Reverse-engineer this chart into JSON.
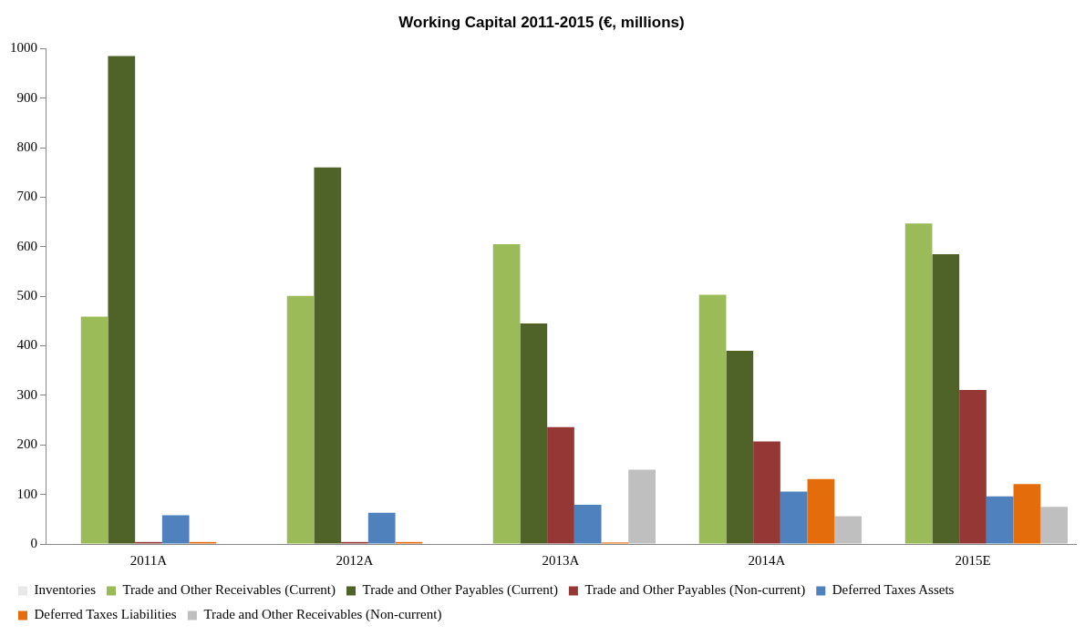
{
  "chart_data": {
    "type": "bar",
    "title": "Working Capital 2011-2015 (€, millions)",
    "categories": [
      "2011A",
      "2012A",
      "2013A",
      "2014A",
      "2015E"
    ],
    "series": [
      {
        "name": "Inventories",
        "color": "#e8e8e8",
        "values": [
          null,
          null,
          null,
          null,
          null
        ]
      },
      {
        "name": "Trade and Other Receivables (Current)",
        "color": "#9bbb59",
        "values": [
          459,
          501,
          605,
          503,
          647
        ]
      },
      {
        "name": "Trade and Other Payables (Current)",
        "color": "#4f6228",
        "values": [
          985,
          760,
          445,
          390,
          585
        ]
      },
      {
        "name": "Trade and Other Payables (Non-current)",
        "color": "#953735",
        "values": [
          4,
          4,
          236,
          207,
          311
        ]
      },
      {
        "name": "Deferred Taxes Assets",
        "color": "#4f81bd",
        "values": [
          58,
          63,
          79,
          106,
          96
        ]
      },
      {
        "name": "Deferred Taxes Liabilities",
        "color": "#e46c0a",
        "values": [
          4,
          4,
          3,
          131,
          121
        ]
      },
      {
        "name": "Trade and Other Receivables (Non-current)",
        "color": "#bfbfbf",
        "values": [
          0,
          0,
          150,
          56,
          75
        ]
      }
    ],
    "ylim": [
      0,
      1000
    ],
    "yticks": [
      0,
      100,
      200,
      300,
      400,
      500,
      600,
      700,
      800,
      900,
      1000
    ],
    "grid": false,
    "legend": "bottom"
  }
}
